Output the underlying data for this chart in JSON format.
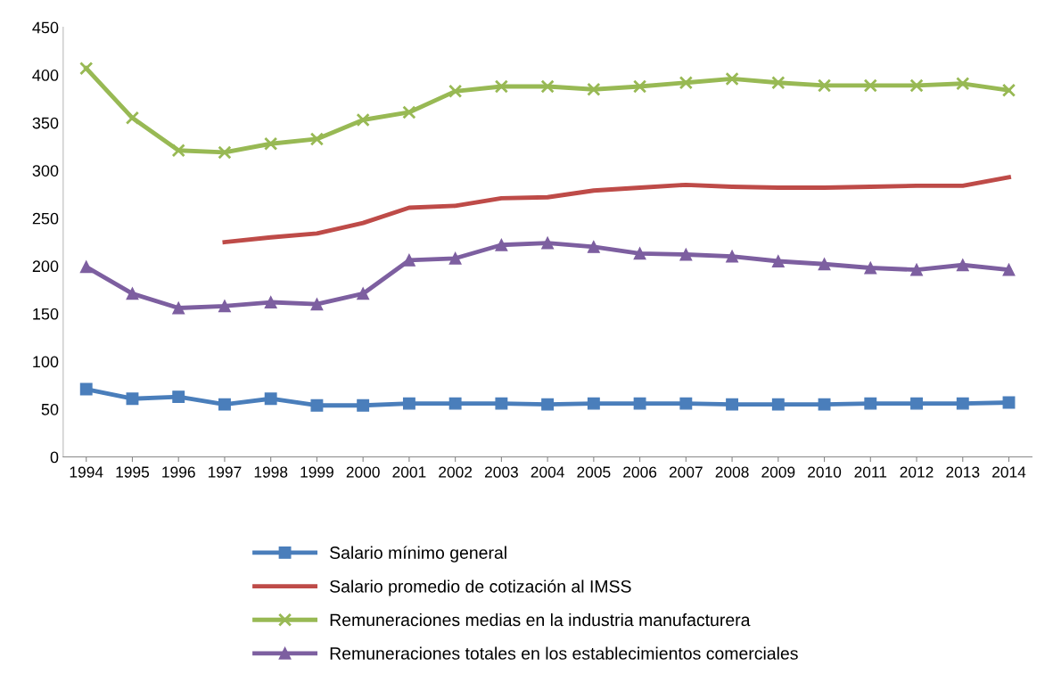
{
  "chart_data": {
    "type": "line",
    "categories": [
      "1994",
      "1995",
      "1996",
      "1997",
      "1998",
      "1999",
      "2000",
      "2001",
      "2002",
      "2003",
      "2004",
      "2005",
      "2006",
      "2007",
      "2008",
      "2009",
      "2010",
      "2011",
      "2012",
      "2013",
      "2014"
    ],
    "series": [
      {
        "name": "Salario mínimo general",
        "color": "#4a7ebb",
        "marker": "square",
        "values": [
          71,
          61,
          63,
          55,
          61,
          54,
          54,
          56,
          56,
          56,
          55,
          56,
          56,
          56,
          55,
          55,
          55,
          56,
          56,
          56,
          57
        ]
      },
      {
        "name": "Salario promedio de cotización al IMSS",
        "color": "#be4b48",
        "marker": "none",
        "values": [
          null,
          null,
          null,
          225,
          230,
          234,
          245,
          261,
          263,
          271,
          272,
          279,
          282,
          285,
          283,
          282,
          282,
          283,
          284,
          284,
          293
        ]
      },
      {
        "name": "Remuneraciones medias en la industria manufacturera",
        "color": "#98b954",
        "marker": "cross",
        "values": [
          407,
          355,
          321,
          319,
          328,
          333,
          353,
          361,
          383,
          388,
          388,
          385,
          388,
          392,
          396,
          392,
          389,
          389,
          389,
          391,
          384
        ]
      },
      {
        "name": "Remuneraciones totales en los establecimientos comerciales",
        "color": "#7d5fa0",
        "marker": "triangle",
        "values": [
          199,
          171,
          156,
          158,
          162,
          160,
          171,
          206,
          208,
          222,
          224,
          220,
          213,
          212,
          210,
          205,
          202,
          198,
          196,
          201,
          196
        ]
      }
    ],
    "ylim": [
      0,
      450
    ],
    "yticks": [
      0,
      50,
      100,
      150,
      200,
      250,
      300,
      350,
      400,
      450
    ],
    "grid": false,
    "legend": "bottom",
    "line_style": "solid"
  }
}
